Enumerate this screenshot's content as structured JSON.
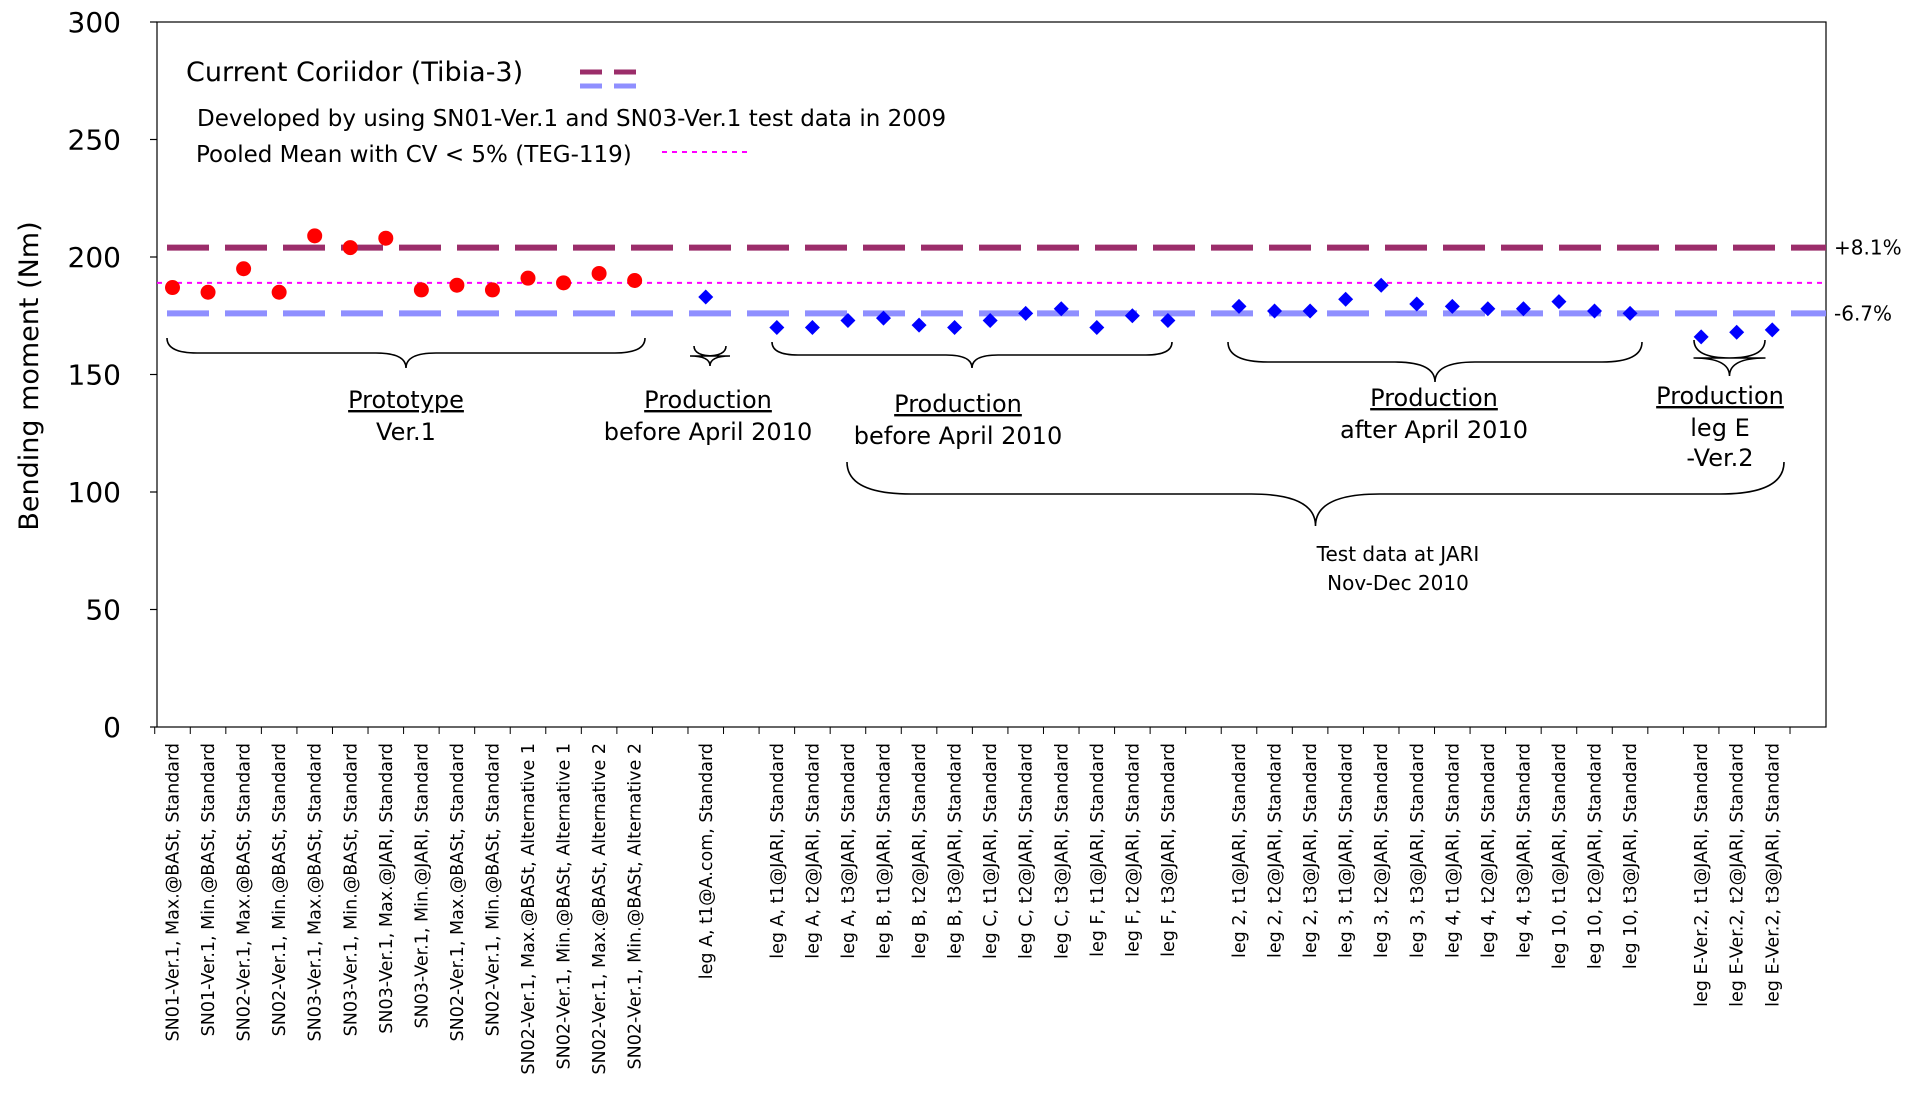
{
  "chart_data": {
    "type": "scatter",
    "title": "",
    "ylabel": "Bending moment (Nm)",
    "ylim": [
      0,
      300
    ],
    "yticks": [
      "0",
      "50",
      "100",
      "150",
      "200",
      "250",
      "300"
    ],
    "grid": false,
    "legend": {
      "corridor": "Current Coriidor (Tibia-3)",
      "developed": "Developed by using SN01-Ver.1 and SN03-Ver.1 test data in 2009",
      "pooled": "Pooled Mean with CV < 5% (TEG-119)"
    },
    "reference_lines": [
      {
        "name": "upper",
        "value": 204,
        "color": "#9b2d6a",
        "label": "+8.1%"
      },
      {
        "name": "pooled",
        "value": 189,
        "color": "#ff00ff",
        "label": ""
      },
      {
        "name": "lower",
        "value": 176,
        "color": "#8f8fff",
        "label": "-6.7%"
      }
    ],
    "points": [
      {
        "label": "SN01-Ver.1,  Max.@BASt, Standard",
        "value": 187,
        "marker": "circle"
      },
      {
        "label": "SN01-Ver.1,  Min.@BASt, Standard",
        "value": 185,
        "marker": "circle"
      },
      {
        "label": "SN02-Ver.1,  Max.@BASt, Standard",
        "value": 195,
        "marker": "circle"
      },
      {
        "label": "SN02-Ver.1,  Min.@BASt, Standard",
        "value": 185,
        "marker": "circle"
      },
      {
        "label": "SN03-Ver.1,  Max.@BASt, Standard",
        "value": 209,
        "marker": "circle"
      },
      {
        "label": "SN03-Ver.1,  Min.@BASt, Standard",
        "value": 204,
        "marker": "circle"
      },
      {
        "label": "SN03-Ver.1,  Max.@JARI, Standard",
        "value": 208,
        "marker": "circle"
      },
      {
        "label": "SN03-Ver.1,  Min.@JARI, Standard",
        "value": 186,
        "marker": "circle"
      },
      {
        "label": "SN02-Ver.1,  Max.@BASt, Standard",
        "value": 188,
        "marker": "circle"
      },
      {
        "label": "SN02-Ver.1,  Min.@BASt, Standard",
        "value": 186,
        "marker": "circle"
      },
      {
        "label": "SN02-Ver.1,  Max.@BASt, Alternative 1",
        "value": 191,
        "marker": "circle"
      },
      {
        "label": "SN02-Ver.1,  Min.@BASt, Alternative 1",
        "value": 189,
        "marker": "circle"
      },
      {
        "label": "SN02-Ver.1,  Max.@BASt, Alternative 2",
        "value": 193,
        "marker": "circle"
      },
      {
        "label": "SN02-Ver.1,  Min.@BASt, Alternative 2",
        "value": 190,
        "marker": "circle"
      },
      {
        "label": "",
        "value": null,
        "marker": "none"
      },
      {
        "label": "leg A, t1@A.com, Standard",
        "value": 183,
        "marker": "diamond"
      },
      {
        "label": "",
        "value": null,
        "marker": "none"
      },
      {
        "label": "leg A, t1@JARI, Standard",
        "value": 170,
        "marker": "diamond"
      },
      {
        "label": "leg A, t2@JARI, Standard",
        "value": 170,
        "marker": "diamond"
      },
      {
        "label": "leg A, t3@JARI, Standard",
        "value": 173,
        "marker": "diamond"
      },
      {
        "label": "leg B, t1@JARI, Standard",
        "value": 174,
        "marker": "diamond"
      },
      {
        "label": "leg B, t2@JARI, Standard",
        "value": 171,
        "marker": "diamond"
      },
      {
        "label": "leg B, t3@JARI, Standard",
        "value": 170,
        "marker": "diamond"
      },
      {
        "label": "leg C, t1@JARI, Standard",
        "value": 173,
        "marker": "diamond"
      },
      {
        "label": "leg C, t2@JARI, Standard",
        "value": 176,
        "marker": "diamond"
      },
      {
        "label": "leg C, t3@JARI, Standard",
        "value": 178,
        "marker": "diamond"
      },
      {
        "label": "leg F, t1@JARI, Standard",
        "value": 170,
        "marker": "diamond"
      },
      {
        "label": "leg F, t2@JARI, Standard",
        "value": 175,
        "marker": "diamond"
      },
      {
        "label": "leg F, t3@JARI, Standard",
        "value": 173,
        "marker": "diamond"
      },
      {
        "label": "",
        "value": null,
        "marker": "none"
      },
      {
        "label": "leg 2, t1@JARI, Standard",
        "value": 179,
        "marker": "diamond"
      },
      {
        "label": "leg 2, t2@JARI, Standard",
        "value": 177,
        "marker": "diamond"
      },
      {
        "label": "leg 2, t3@JARI, Standard",
        "value": 177,
        "marker": "diamond"
      },
      {
        "label": "leg 3, t1@JARI, Standard",
        "value": 182,
        "marker": "diamond"
      },
      {
        "label": "leg 3, t2@JARI, Standard",
        "value": 188,
        "marker": "diamond"
      },
      {
        "label": "leg 3, t3@JARI, Standard",
        "value": 180,
        "marker": "diamond"
      },
      {
        "label": "leg 4, t1@JARI, Standard",
        "value": 179,
        "marker": "diamond"
      },
      {
        "label": "leg 4, t2@JARI, Standard",
        "value": 178,
        "marker": "diamond"
      },
      {
        "label": "leg 4, t3@JARI, Standard",
        "value": 178,
        "marker": "diamond"
      },
      {
        "label": "leg 10, t1@JARI, Standard",
        "value": 181,
        "marker": "diamond"
      },
      {
        "label": "leg 10, t2@JARI, Standard",
        "value": 177,
        "marker": "diamond"
      },
      {
        "label": "leg 10, t3@JARI, Standard",
        "value": 176,
        "marker": "diamond"
      },
      {
        "label": "",
        "value": null,
        "marker": "none"
      },
      {
        "label": "leg E-Ver.2, t1@JARI, Standard",
        "value": 166,
        "marker": "diamond"
      },
      {
        "label": "leg E-Ver.2, t2@JARI, Standard",
        "value": 168,
        "marker": "diamond"
      },
      {
        "label": "leg E-Ver.2, t3@JARI, Standard",
        "value": 169,
        "marker": "diamond"
      }
    ],
    "groups": [
      {
        "title": "Prototype",
        "subtitle": [
          "Ver.1"
        ]
      },
      {
        "title": "Production",
        "subtitle": [
          "before April 2010"
        ]
      },
      {
        "title": "Production",
        "subtitle": [
          "before April 2010"
        ]
      },
      {
        "title": "Production",
        "subtitle": [
          "after April 2010"
        ]
      },
      {
        "title": "Production",
        "subtitle": [
          "leg E",
          "-Ver.2"
        ]
      }
    ],
    "bottom_note": [
      "Test data at JARI",
      "Nov-Dec 2010"
    ],
    "colors": {
      "circle": "#ff0000",
      "diamond": "#0000ff",
      "axis": "#000000"
    }
  }
}
